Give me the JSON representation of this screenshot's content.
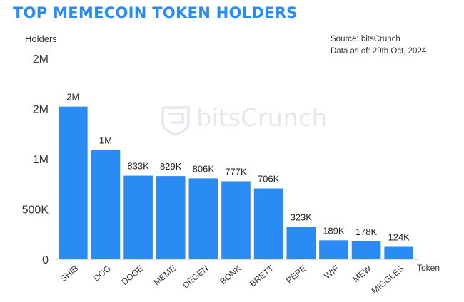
{
  "chart_data": {
    "type": "bar",
    "title": "TOP MEMECOIN TOKEN HOLDERS",
    "ylabel": "Holders",
    "xlabel": "Token",
    "source": "Source: bitsCrunch",
    "as_of": "Data as of: 29th Oct, 2024",
    "watermark": "bitsCrunch",
    "bar_color": "#2a8bf2",
    "title_color": "#2a8bf2",
    "ylim": [
      0,
      2100000
    ],
    "yticks": [
      {
        "value": 0,
        "label": "0"
      },
      {
        "value": 500000,
        "label": "500K"
      },
      {
        "value": 1000000,
        "label": "1M"
      },
      {
        "value": 1500000,
        "label": "2M"
      },
      {
        "value": 2000000,
        "label": "2M"
      }
    ],
    "categories": [
      "SHIB",
      "DOG",
      "DOGE",
      "MEME",
      "DEGEN",
      "BONK",
      "BRETT",
      "PEPE",
      "WIF",
      "MEW",
      "MIGGLES"
    ],
    "values": [
      1520000,
      1090000,
      833000,
      829000,
      806000,
      777000,
      706000,
      323000,
      189000,
      178000,
      124000
    ],
    "data_labels": [
      "2M",
      "1M",
      "833K",
      "829K",
      "806K",
      "777K",
      "706K",
      "323K",
      "189K",
      "178K",
      "124K"
    ],
    "grid": false,
    "legend": "none"
  }
}
